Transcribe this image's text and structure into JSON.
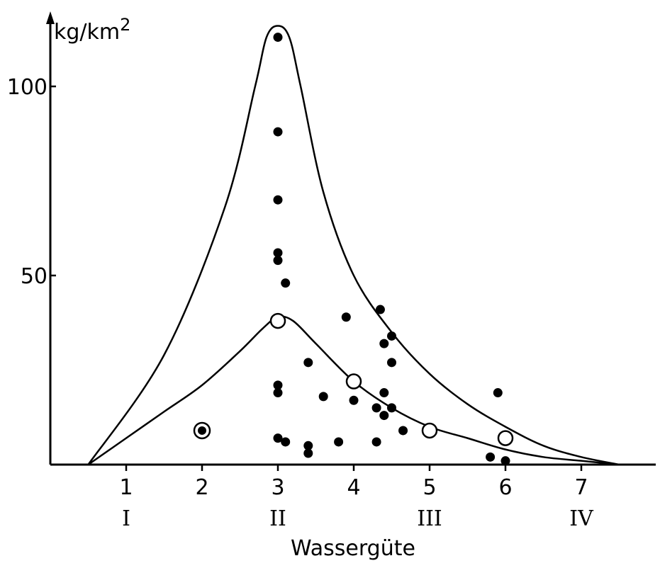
{
  "chart_data": {
    "type": "scatter",
    "ylabel": "kg/km",
    "ylabel_superscript": "2",
    "xlabel": "Wassergüte",
    "xlim": [
      0,
      8
    ],
    "ylim": [
      0,
      120
    ],
    "x_ticks": [
      {
        "value": 1,
        "label": "1"
      },
      {
        "value": 2,
        "label": "2"
      },
      {
        "value": 3,
        "label": "3"
      },
      {
        "value": 4,
        "label": "4"
      },
      {
        "value": 5,
        "label": "5"
      },
      {
        "value": 6,
        "label": "6"
      },
      {
        "value": 7,
        "label": "7"
      }
    ],
    "y_ticks": [
      {
        "value": 50,
        "label": "50"
      },
      {
        "value": 100,
        "label": "100"
      }
    ],
    "roman_labels": [
      {
        "value": 1,
        "label": "I"
      },
      {
        "value": 3,
        "label": "II"
      },
      {
        "value": 5,
        "label": "III"
      },
      {
        "value": 7,
        "label": "IV"
      }
    ],
    "grid": false,
    "legend": "none",
    "series": [
      {
        "marker": "filled",
        "points": [
          {
            "x": 3.0,
            "y": 113
          },
          {
            "x": 3.0,
            "y": 88
          },
          {
            "x": 3.0,
            "y": 70
          },
          {
            "x": 3.0,
            "y": 56
          },
          {
            "x": 3.0,
            "y": 54
          },
          {
            "x": 3.1,
            "y": 48
          },
          {
            "x": 3.0,
            "y": 21
          },
          {
            "x": 3.0,
            "y": 19
          },
          {
            "x": 3.0,
            "y": 7
          },
          {
            "x": 3.1,
            "y": 6
          },
          {
            "x": 3.4,
            "y": 27
          },
          {
            "x": 3.4,
            "y": 5
          },
          {
            "x": 3.4,
            "y": 3
          },
          {
            "x": 3.6,
            "y": 18
          },
          {
            "x": 3.8,
            "y": 6
          },
          {
            "x": 3.9,
            "y": 39
          },
          {
            "x": 4.0,
            "y": 17
          },
          {
            "x": 4.3,
            "y": 15
          },
          {
            "x": 4.3,
            "y": 6
          },
          {
            "x": 4.35,
            "y": 41
          },
          {
            "x": 4.4,
            "y": 32
          },
          {
            "x": 4.4,
            "y": 19
          },
          {
            "x": 4.4,
            "y": 13
          },
          {
            "x": 4.5,
            "y": 34
          },
          {
            "x": 4.5,
            "y": 27
          },
          {
            "x": 4.5,
            "y": 15
          },
          {
            "x": 4.65,
            "y": 9
          },
          {
            "x": 5.8,
            "y": 2
          },
          {
            "x": 5.9,
            "y": 19
          },
          {
            "x": 6.0,
            "y": 1
          }
        ]
      },
      {
        "marker": "open",
        "points": [
          {
            "x": 3.0,
            "y": 38
          },
          {
            "x": 4.0,
            "y": 22
          },
          {
            "x": 5.0,
            "y": 9
          },
          {
            "x": 6.0,
            "y": 7
          }
        ]
      },
      {
        "marker": "ringed",
        "points": [
          {
            "x": 2.0,
            "y": 9
          }
        ]
      }
    ],
    "envelopes": [
      {
        "name_shown": false,
        "points": [
          [
            0.5,
            0
          ],
          [
            1.5,
            29
          ],
          [
            2.3,
            68
          ],
          [
            2.7,
            100
          ],
          [
            2.85,
            113
          ],
          [
            3.0,
            116
          ],
          [
            3.15,
            113
          ],
          [
            3.3,
            100
          ],
          [
            3.6,
            72
          ],
          [
            4.0,
            50
          ],
          [
            4.5,
            35
          ],
          [
            5.0,
            24
          ],
          [
            5.5,
            16
          ],
          [
            6.0,
            10
          ],
          [
            6.5,
            5
          ],
          [
            7.0,
            2
          ],
          [
            7.5,
            0
          ]
        ]
      },
      {
        "name_shown": false,
        "points": [
          [
            0.5,
            0
          ],
          [
            1.0,
            7
          ],
          [
            1.5,
            14
          ],
          [
            2.0,
            21
          ],
          [
            2.5,
            30
          ],
          [
            2.8,
            36
          ],
          [
            3.0,
            39
          ],
          [
            3.2,
            38
          ],
          [
            3.5,
            32
          ],
          [
            4.0,
            22
          ],
          [
            4.5,
            15
          ],
          [
            5.0,
            10
          ],
          [
            5.5,
            7
          ],
          [
            6.0,
            4
          ],
          [
            6.5,
            2
          ],
          [
            7.0,
            1
          ],
          [
            7.5,
            0
          ]
        ]
      }
    ]
  }
}
